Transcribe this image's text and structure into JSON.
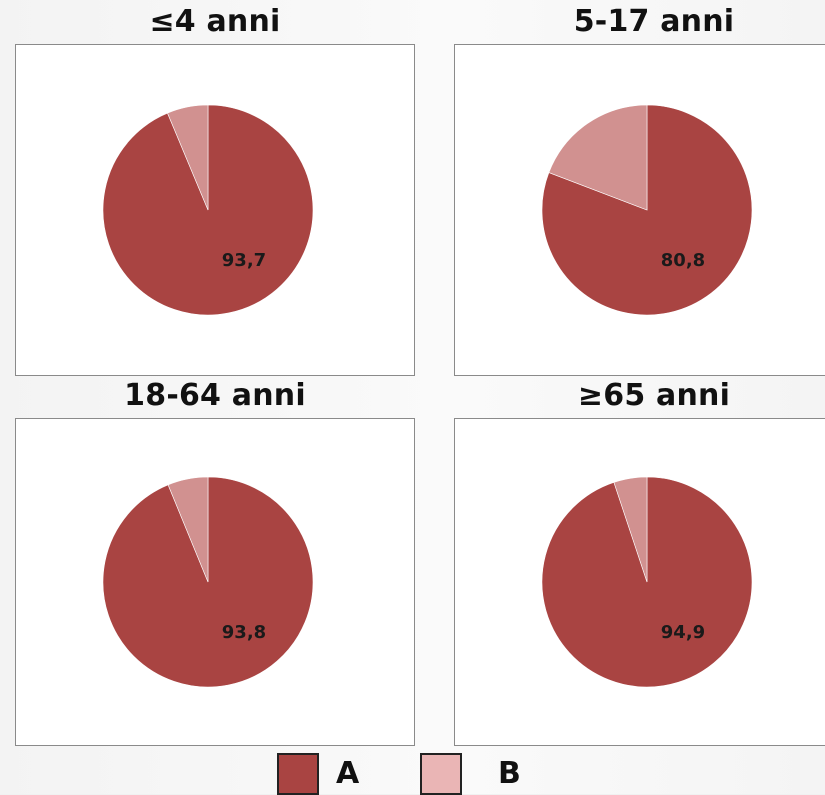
{
  "chart_data": [
    {
      "type": "pie",
      "title": "≤4 anni",
      "categories": [
        "A",
        "B"
      ],
      "values": [
        93.7,
        6.3
      ],
      "data_labels": [
        "93,7",
        ""
      ]
    },
    {
      "type": "pie",
      "title": "5-17 anni",
      "categories": [
        "A",
        "B"
      ],
      "values": [
        80.8,
        19.2
      ],
      "data_labels": [
        "80,8",
        ""
      ]
    },
    {
      "type": "pie",
      "title": "18-64 anni",
      "categories": [
        "A",
        "B"
      ],
      "values": [
        93.8,
        6.2
      ],
      "data_labels": [
        "93,8",
        ""
      ]
    },
    {
      "type": "pie",
      "title": "≥65 anni",
      "categories": [
        "A",
        "B"
      ],
      "values": [
        94.9,
        5.1
      ],
      "data_labels": [
        "94,9",
        ""
      ]
    }
  ],
  "legend": {
    "placement": "bottom",
    "items": [
      {
        "label": "A",
        "color": "#a94442"
      },
      {
        "label": "B",
        "color": "#eab5b5"
      }
    ]
  },
  "colors": {
    "slice_a": "#a94442",
    "slice_b": "#d19190"
  }
}
